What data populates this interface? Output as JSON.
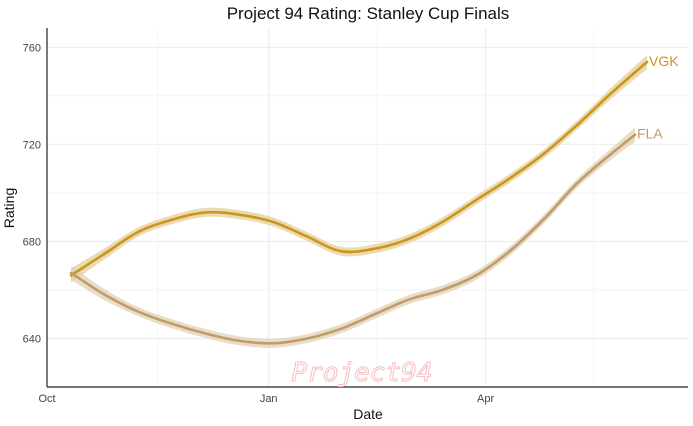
{
  "chart_data": {
    "type": "line",
    "title": "Project 94 Rating: Stanley Cup Finals",
    "xlabel": "Date",
    "ylabel": "Rating",
    "watermark": "Project94",
    "x_ticks": [
      {
        "label": "Oct",
        "date": "2022-10-01"
      },
      {
        "label": "Jan",
        "date": "2023-01-01"
      },
      {
        "label": "Apr",
        "date": "2023-04-01"
      }
    ],
    "y_ticks": [
      640,
      680,
      720,
      760
    ],
    "xlim": [
      "2022-10-01",
      "2023-06-24"
    ],
    "ylim": [
      620,
      768
    ],
    "grid": true,
    "series": [
      {
        "name": "VGK",
        "color": "#c9961f",
        "band_color": "#e6cf98",
        "x": [
          "2022-10-11",
          "2022-10-25",
          "2022-11-08",
          "2022-11-22",
          "2022-12-06",
          "2022-12-20",
          "2023-01-03",
          "2023-01-17",
          "2023-01-31",
          "2023-02-14",
          "2023-02-28",
          "2023-03-14",
          "2023-03-28",
          "2023-04-11",
          "2023-04-25",
          "2023-05-09",
          "2023-05-23",
          "2023-06-07"
        ],
        "y": [
          666,
          675,
          684,
          689,
          692,
          691,
          688,
          682,
          676,
          677,
          681,
          688,
          697,
          706,
          716,
          728,
          741,
          754
        ]
      },
      {
        "name": "FLA",
        "color": "#bf9d6b",
        "band_color": "#e3d0b3",
        "x": [
          "2022-10-11",
          "2022-10-25",
          "2022-11-08",
          "2022-11-22",
          "2022-12-06",
          "2022-12-20",
          "2023-01-03",
          "2023-01-17",
          "2023-01-31",
          "2023-02-14",
          "2023-02-28",
          "2023-03-14",
          "2023-03-28",
          "2023-04-11",
          "2023-04-25",
          "2023-05-09",
          "2023-05-23",
          "2023-06-02"
        ],
        "y": [
          667,
          658,
          651,
          646,
          642,
          639,
          638,
          640,
          644,
          650,
          656,
          660,
          666,
          676,
          689,
          704,
          716,
          724
        ]
      }
    ]
  }
}
